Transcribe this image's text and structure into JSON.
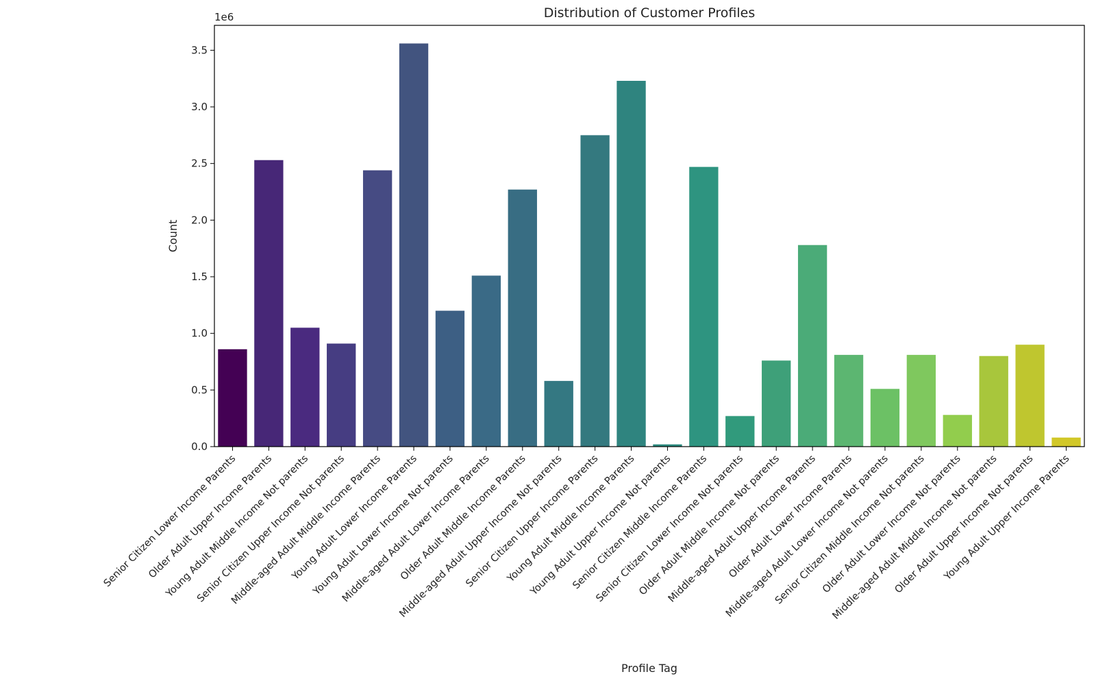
{
  "chart_data": {
    "type": "bar",
    "title": "Distribution of Customer Profiles",
    "xlabel": "Profile Tag",
    "ylabel": "Count",
    "y_offset_label": "1e6",
    "ylim": [
      0,
      3.72
    ],
    "y_ticks": [
      0.0,
      0.5,
      1.0,
      1.5,
      2.0,
      2.5,
      3.0,
      3.5
    ],
    "y_tick_labels": [
      "0.0",
      "0.5",
      "1.0",
      "1.5",
      "2.0",
      "2.5",
      "3.0",
      "3.5"
    ],
    "grid": false,
    "palette": "viridis",
    "colors": [
      "#440154",
      "#472777",
      "#4a2a7f",
      "#463d82",
      "#464b83",
      "#42547f",
      "#3d5f84",
      "#3a6a86",
      "#386d83",
      "#347882",
      "#34797f",
      "#2f847f",
      "#2c8b7f",
      "#2e9480",
      "#319a7c",
      "#3ea079",
      "#4bab78",
      "#5cb671",
      "#6cc165",
      "#7fc85e",
      "#92cd4d",
      "#a8c63c",
      "#bfc62f",
      "#d1c728"
    ],
    "categories": [
      "Senior Citizen Lower Income Parents",
      "Older Adult Upper Income Parents",
      "Young Adult Middle Income Not parents",
      "Senior Citizen Upper Income Not parents",
      "Middle-aged Adult Middle Income Parents",
      "Young Adult Lower Income Parents",
      "Young Adult Lower Income Not parents",
      "Middle-aged Adult Lower Income Parents",
      "Older Adult Middle Income Parents",
      "Middle-aged Adult Upper Income Not parents",
      "Senior Citizen Upper Income Parents",
      "Young Adult Middle Income Parents",
      "Young Adult Upper Income Not parents",
      "Senior Citizen Middle Income Parents",
      "Senior Citizen Lower Income Not parents",
      "Older Adult Middle Income Not parents",
      "Middle-aged Adult Upper Income Parents",
      "Older Adult Lower Income Parents",
      "Middle-aged Adult Lower Income Not parents",
      "Senior Citizen Middle Income Not parents",
      "Older Adult Lower Income Not parents",
      "Middle-aged Adult Middle Income Not parents",
      "Older Adult Upper Income Not parents",
      "Young Adult Upper Income Parents"
    ],
    "values": [
      0.86,
      2.53,
      1.05,
      0.91,
      2.44,
      3.56,
      1.2,
      1.51,
      2.27,
      0.58,
      2.75,
      3.23,
      0.02,
      2.47,
      0.27,
      0.76,
      1.78,
      0.81,
      0.51,
      0.81,
      0.28,
      0.8,
      0.9,
      0.08
    ]
  }
}
